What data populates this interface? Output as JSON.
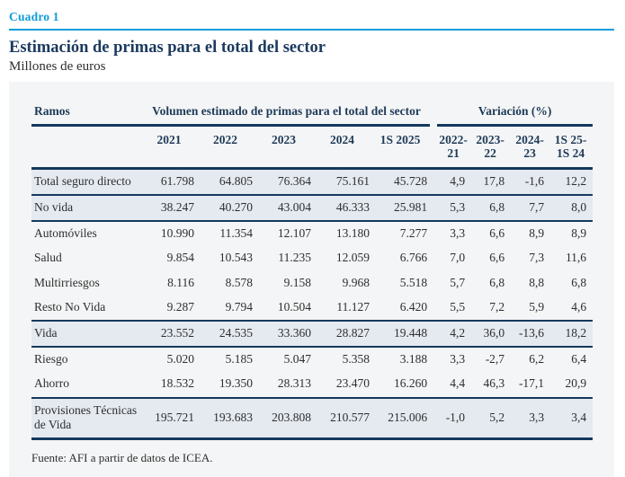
{
  "page": {
    "kicker": "Cuadro 1",
    "title": "Estimación de primas para el total del sector",
    "subtitle": "Millones de euros",
    "source": "Fuente: AFI a partir de datos de ICEA."
  },
  "colors": {
    "accent_cyan": "#0f9dd8",
    "navy": "#1b3a5e",
    "row_shade": "#e5eaf1",
    "panel_background": "#f4f5f6"
  },
  "table": {
    "ramos_header": "Ramos",
    "group_volume": "Volumen estimado de primas para el total del sector",
    "group_variation": "Variación (%)",
    "years": [
      "2021",
      "2022",
      "2023",
      "2024",
      "1S 2025"
    ],
    "variation_headers": [
      {
        "line1": "2022-",
        "line2": "21"
      },
      {
        "line1": "2023-",
        "line2": "22"
      },
      {
        "line1": "2024-",
        "line2": "23"
      },
      {
        "line1": "1S 25-",
        "line2": "1S 24"
      }
    ],
    "rows": [
      {
        "label": "Total seguro directo",
        "shaded": true,
        "values": [
          "61.798",
          "64.805",
          "76.364",
          "75.161",
          "45.728"
        ],
        "variations": [
          "4,9",
          "17,8",
          "-1,6",
          "12,2"
        ]
      },
      {
        "label": "No vida",
        "shaded": true,
        "values": [
          "38.247",
          "40.270",
          "43.004",
          "46.333",
          "25.981"
        ],
        "variations": [
          "5,3",
          "6,8",
          "7,7",
          "8,0"
        ]
      },
      {
        "label": "Automóviles",
        "shaded": false,
        "values": [
          "10.990",
          "11.354",
          "12.107",
          "13.180",
          "7.277"
        ],
        "variations": [
          "3,3",
          "6,6",
          "8,9",
          "8,9"
        ]
      },
      {
        "label": "Salud",
        "shaded": false,
        "values": [
          "9.854",
          "10.543",
          "11.235",
          "12.059",
          "6.766"
        ],
        "variations": [
          "7,0",
          "6,6",
          "7,3",
          "11,6"
        ]
      },
      {
        "label": "Multirriesgos",
        "shaded": false,
        "values": [
          "8.116",
          "8.578",
          "9.158",
          "9.968",
          "5.518"
        ],
        "variations": [
          "5,7",
          "6,8",
          "8,8",
          "6,8"
        ]
      },
      {
        "label": "Resto No Vida",
        "shaded": false,
        "values": [
          "9.287",
          "9.794",
          "10.504",
          "11.127",
          "6.420"
        ],
        "variations": [
          "5,5",
          "7,2",
          "5,9",
          "4,6"
        ]
      },
      {
        "label": "Vida",
        "shaded": true,
        "values": [
          "23.552",
          "24.535",
          "33.360",
          "28.827",
          "19.448"
        ],
        "variations": [
          "4,2",
          "36,0",
          "-13,6",
          "18,2"
        ]
      },
      {
        "label": "Riesgo",
        "shaded": false,
        "values": [
          "5.020",
          "5.185",
          "5.047",
          "5.358",
          "3.188"
        ],
        "variations": [
          "3,3",
          "-2,7",
          "6,2",
          "6,4"
        ]
      },
      {
        "label": "Ahorro",
        "shaded": false,
        "values": [
          "18.532",
          "19.350",
          "28.313",
          "23.470",
          "16.260"
        ],
        "variations": [
          "4,4",
          "46,3",
          "-17,1",
          "20,9"
        ]
      },
      {
        "label": "Provisiones Técnicas de Vida",
        "shaded": true,
        "values": [
          "195.721",
          "193.683",
          "203.808",
          "210.577",
          "215.006"
        ],
        "variations": [
          "-1,0",
          "5,2",
          "3,3",
          "3,4"
        ]
      }
    ]
  }
}
